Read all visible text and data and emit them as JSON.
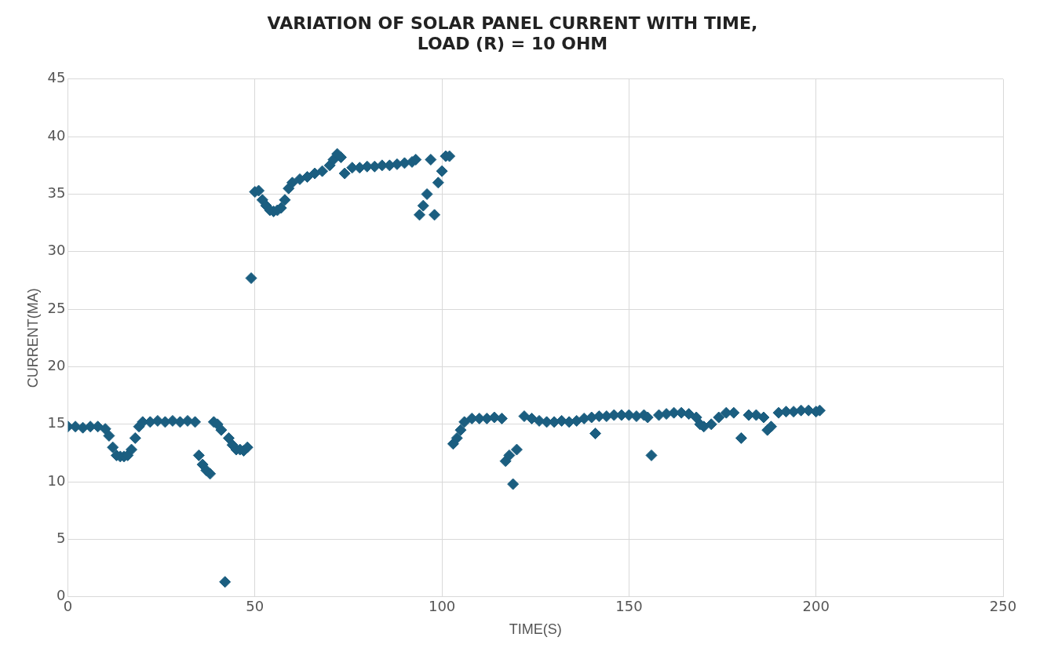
{
  "chart_data": {
    "type": "scatter",
    "title": "VARIATION OF SOLAR PANEL CURRENT WITH TIME,\nLOAD (R) = 10 OHM",
    "xlabel": "TIME(S)",
    "ylabel": "CURRENT(MA)",
    "marker": "diamond",
    "grid": true,
    "legend": false,
    "xlim": [
      0,
      250
    ],
    "xticks": [
      0,
      50,
      100,
      150,
      200,
      250
    ],
    "ylim": [
      0,
      45
    ],
    "yticks": [
      0,
      5,
      10,
      15,
      20,
      25,
      30,
      35,
      40,
      45
    ],
    "series": [
      {
        "color": "#1b5e80",
        "x": [
          0,
          2,
          4,
          6,
          8,
          10,
          11,
          12,
          13,
          14,
          15,
          16,
          17,
          18,
          19,
          20,
          22,
          24,
          26,
          28,
          30,
          32,
          34,
          35,
          36,
          37,
          38,
          39,
          40,
          41,
          42,
          43,
          44,
          45,
          46,
          47,
          48,
          49,
          50,
          51,
          52,
          53,
          54,
          55,
          56,
          57,
          58,
          59,
          60,
          62,
          64,
          66,
          68,
          70,
          71,
          72,
          73,
          74,
          76,
          78,
          80,
          82,
          84,
          86,
          88,
          90,
          92,
          93,
          94,
          95,
          96,
          97,
          98,
          99,
          100,
          101,
          102,
          103,
          104,
          105,
          106,
          108,
          110,
          112,
          114,
          116,
          117,
          118,
          119,
          120,
          122,
          124,
          126,
          128,
          130,
          132,
          134,
          136,
          138,
          140,
          141,
          142,
          144,
          146,
          148,
          150,
          152,
          154,
          155,
          156,
          158,
          160,
          162,
          164,
          166,
          168,
          169,
          170,
          172,
          174,
          176,
          178,
          180,
          182,
          184,
          186,
          187,
          188,
          190,
          192,
          194,
          196,
          198,
          200,
          201
        ],
        "values": [
          14.8,
          14.8,
          14.7,
          14.8,
          14.8,
          14.6,
          14.0,
          13.0,
          12.3,
          12.2,
          12.2,
          12.3,
          12.8,
          13.8,
          14.8,
          15.2,
          15.2,
          15.3,
          15.2,
          15.3,
          15.2,
          15.3,
          15.2,
          12.3,
          11.5,
          11.0,
          10.7,
          15.2,
          15.0,
          14.5,
          1.3,
          13.8,
          13.2,
          12.8,
          12.8,
          12.7,
          13.0,
          27.7,
          35.2,
          35.3,
          34.5,
          34.0,
          33.6,
          33.5,
          33.6,
          33.8,
          34.5,
          35.5,
          36.0,
          36.3,
          36.5,
          36.8,
          37.0,
          37.5,
          38.0,
          38.5,
          38.2,
          36.8,
          37.3,
          37.3,
          37.4,
          37.4,
          37.5,
          37.5,
          37.6,
          37.7,
          37.8,
          38.0,
          33.2,
          34.0,
          35.0,
          38.0,
          33.2,
          36.0,
          37.0,
          38.3,
          38.3,
          13.3,
          13.8,
          14.5,
          15.2,
          15.5,
          15.5,
          15.5,
          15.6,
          15.5,
          11.8,
          12.3,
          9.8,
          12.8,
          15.7,
          15.5,
          15.3,
          15.2,
          15.2,
          15.3,
          15.2,
          15.3,
          15.5,
          15.6,
          14.2,
          15.7,
          15.7,
          15.8,
          15.8,
          15.8,
          15.7,
          15.8,
          15.6,
          12.3,
          15.8,
          15.9,
          16.0,
          16.0,
          15.9,
          15.6,
          15.0,
          14.8,
          15.0,
          15.6,
          16.0,
          16.0,
          13.8,
          15.8,
          15.8,
          15.6,
          14.5,
          14.8,
          16.0,
          16.1,
          16.1,
          16.2,
          16.2,
          16.1,
          16.2
        ]
      }
    ]
  }
}
